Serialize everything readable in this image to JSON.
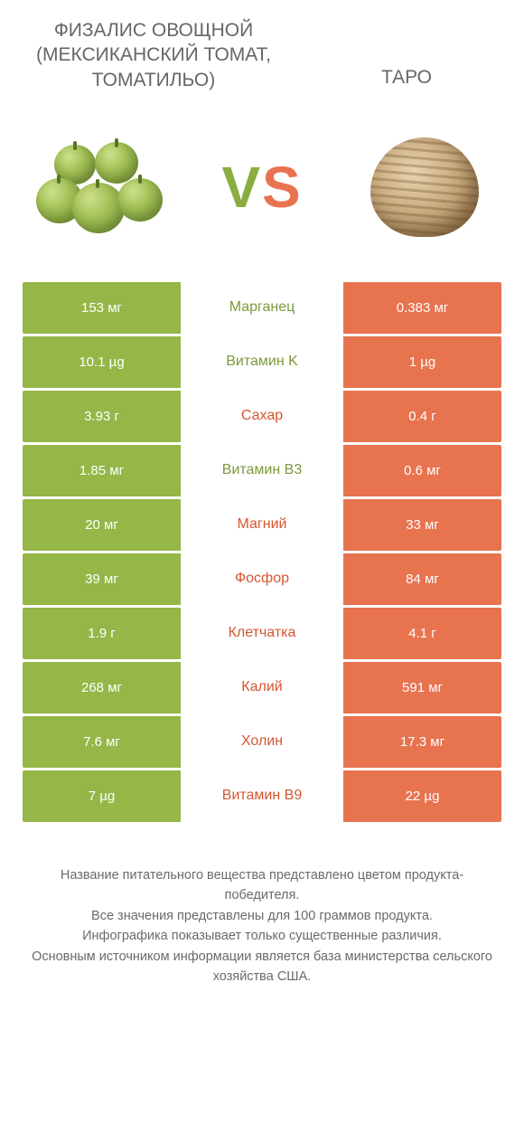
{
  "colors": {
    "left_bg": "#94b747",
    "right_bg": "#e8734f",
    "mid_green": "#7a9a3a",
    "mid_orange": "#d4562f",
    "text": "#666666",
    "background": "#ffffff"
  },
  "header": {
    "left_title": "Физалис овощной (мексиканский томат, томатильо)",
    "right_title": "Таро"
  },
  "vs": {
    "v": "V",
    "s": "S"
  },
  "rows": [
    {
      "left": "153 мг",
      "label": "Марганец",
      "right": "0.383 мг",
      "winner": "left"
    },
    {
      "left": "10.1 µg",
      "label": "Витамин K",
      "right": "1 µg",
      "winner": "left"
    },
    {
      "left": "3.93 г",
      "label": "Сахар",
      "right": "0.4 г",
      "winner": "right"
    },
    {
      "left": "1.85 мг",
      "label": "Витамин B3",
      "right": "0.6 мг",
      "winner": "left"
    },
    {
      "left": "20 мг",
      "label": "Магний",
      "right": "33 мг",
      "winner": "right"
    },
    {
      "left": "39 мг",
      "label": "Фосфор",
      "right": "84 мг",
      "winner": "right"
    },
    {
      "left": "1.9 г",
      "label": "Клетчатка",
      "right": "4.1 г",
      "winner": "right"
    },
    {
      "left": "268 мг",
      "label": "Калий",
      "right": "591 мг",
      "winner": "right"
    },
    {
      "left": "7.6 мг",
      "label": "Холин",
      "right": "17.3 мг",
      "winner": "right"
    },
    {
      "left": "7 µg",
      "label": "Витамин B9",
      "right": "22 µg",
      "winner": "right"
    }
  ],
  "footer": {
    "line1": "Название питательного вещества представлено цветом продукта-победителя.",
    "line2": "Все значения представлены для 100 граммов продукта.",
    "line3": "Инфографика показывает только существенные различия.",
    "line4": "Основным источником информации является база министерства сельского хозяйства США."
  }
}
